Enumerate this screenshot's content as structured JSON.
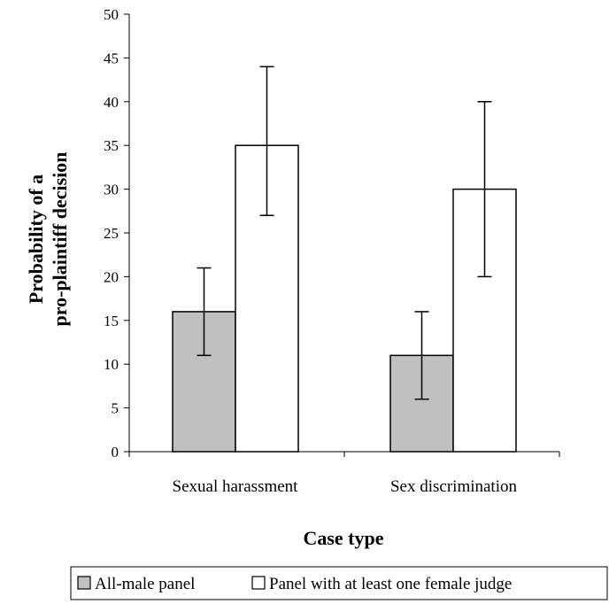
{
  "chart_data": {
    "type": "bar",
    "title": "",
    "xlabel": "Case type",
    "ylabel_lines": [
      "Probability of a",
      "pro-plaintiff decision"
    ],
    "ylim": [
      0,
      50
    ],
    "yticks": [
      0,
      5,
      10,
      15,
      20,
      25,
      30,
      35,
      40,
      45,
      50
    ],
    "categories": [
      "Sexual harassment",
      "Sex discrimination"
    ],
    "series": [
      {
        "name": "All-male panel",
        "values": [
          16,
          11
        ],
        "error_low": [
          11,
          6
        ],
        "error_high": [
          21,
          16
        ],
        "color": "#c0c0c0"
      },
      {
        "name": "Panel with at least one female judge",
        "values": [
          35,
          30
        ],
        "error_low": [
          27,
          20
        ],
        "error_high": [
          44,
          40
        ],
        "color": "#ffffff"
      }
    ],
    "grid": false,
    "legend_position": "bottom"
  }
}
